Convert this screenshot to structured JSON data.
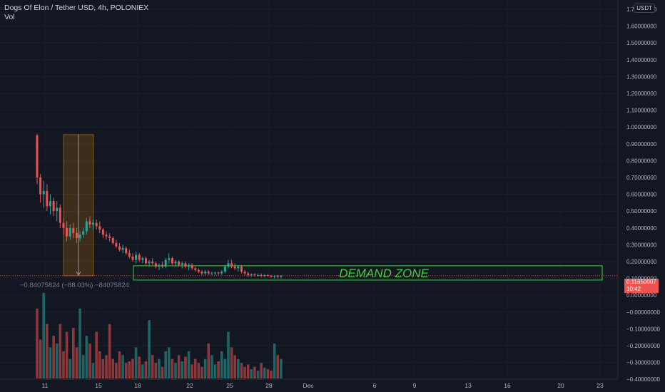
{
  "legend": {
    "title": "Dogs Of Elon / Tether USD, 4h, POLONIEX",
    "volume_label": "Vol"
  },
  "colors": {
    "background": "#131722",
    "up": "#26a69a",
    "down": "#ef5350",
    "zone": "#3bd33b",
    "text": "#d1d4dc"
  },
  "price_axis": {
    "unit": "USDT",
    "ticks": [
      "1.70000000",
      "1.60000000",
      "1.50000000",
      "1.40000000",
      "1.30000000",
      "1.20000000",
      "1.10000000",
      "1.00000000",
      "0.90000000",
      "0.80000000",
      "0.70000000",
      "0.60000000",
      "0.50000000",
      "0.40000000",
      "0.30000000",
      "0.20000000",
      "0.10000000",
      "0.00000000",
      "−0.00000000",
      "−0.10000000",
      "−0.20000000",
      "−0.30000000",
      "−0.40000000"
    ],
    "last_price": "0.11650007",
    "countdown": "10:42"
  },
  "time_axis": {
    "ticks": [
      "11",
      "15",
      "18",
      "22",
      "25",
      "28",
      "Dec",
      "6",
      "9",
      "13",
      "16",
      "20",
      "23"
    ]
  },
  "annotations": {
    "demand_zone_label": "DEMAND ZONE",
    "measure_label": "−0.84075824 (−88.03%) −84075824"
  },
  "chart_data": {
    "type": "candlestick",
    "interval": "4h",
    "ylim": [
      -0.45,
      1.75
    ],
    "demand_zone": [
      0.09,
      0.175
    ],
    "measurement": {
      "from_price": 0.955,
      "to_price": 0.115,
      "change": -0.84075824,
      "percent": -88.03
    },
    "candles": [
      [
        0.95,
        0.96,
        0.66,
        0.7
      ],
      [
        0.7,
        0.72,
        0.55,
        0.6
      ],
      [
        0.6,
        0.68,
        0.52,
        0.62
      ],
      [
        0.62,
        0.66,
        0.5,
        0.53
      ],
      [
        0.53,
        0.6,
        0.48,
        0.56
      ],
      [
        0.56,
        0.58,
        0.47,
        0.5
      ],
      [
        0.5,
        0.56,
        0.44,
        0.52
      ],
      [
        0.52,
        0.54,
        0.4,
        0.43
      ],
      [
        0.43,
        0.46,
        0.36,
        0.4
      ],
      [
        0.4,
        0.44,
        0.32,
        0.35
      ],
      [
        0.35,
        0.42,
        0.33,
        0.4
      ],
      [
        0.4,
        0.43,
        0.34,
        0.37
      ],
      [
        0.37,
        0.4,
        0.31,
        0.34
      ],
      [
        0.34,
        0.38,
        0.32,
        0.36
      ],
      [
        0.36,
        0.4,
        0.34,
        0.38
      ],
      [
        0.38,
        0.46,
        0.36,
        0.44
      ],
      [
        0.44,
        0.47,
        0.4,
        0.42
      ],
      [
        0.42,
        0.45,
        0.39,
        0.43
      ],
      [
        0.43,
        0.45,
        0.39,
        0.41
      ],
      [
        0.41,
        0.44,
        0.37,
        0.39
      ],
      [
        0.39,
        0.4,
        0.34,
        0.36
      ],
      [
        0.36,
        0.38,
        0.33,
        0.35
      ],
      [
        0.35,
        0.37,
        0.32,
        0.34
      ],
      [
        0.34,
        0.35,
        0.3,
        0.31
      ],
      [
        0.31,
        0.33,
        0.28,
        0.29
      ],
      [
        0.29,
        0.31,
        0.26,
        0.27
      ],
      [
        0.27,
        0.3,
        0.25,
        0.28
      ],
      [
        0.28,
        0.29,
        0.24,
        0.25
      ],
      [
        0.25,
        0.27,
        0.22,
        0.23
      ],
      [
        0.23,
        0.25,
        0.2,
        0.21
      ],
      [
        0.21,
        0.26,
        0.19,
        0.24
      ],
      [
        0.24,
        0.25,
        0.2,
        0.21
      ],
      [
        0.21,
        0.23,
        0.19,
        0.22
      ],
      [
        0.22,
        0.23,
        0.18,
        0.19
      ],
      [
        0.19,
        0.21,
        0.17,
        0.2
      ],
      [
        0.2,
        0.22,
        0.18,
        0.19
      ],
      [
        0.19,
        0.2,
        0.16,
        0.17
      ],
      [
        0.17,
        0.19,
        0.15,
        0.18
      ],
      [
        0.18,
        0.2,
        0.16,
        0.17
      ],
      [
        0.17,
        0.22,
        0.16,
        0.21
      ],
      [
        0.21,
        0.25,
        0.19,
        0.22
      ],
      [
        0.22,
        0.23,
        0.18,
        0.19
      ],
      [
        0.19,
        0.21,
        0.17,
        0.2
      ],
      [
        0.2,
        0.21,
        0.17,
        0.18
      ],
      [
        0.18,
        0.2,
        0.16,
        0.19
      ],
      [
        0.19,
        0.2,
        0.16,
        0.17
      ],
      [
        0.17,
        0.19,
        0.15,
        0.18
      ],
      [
        0.18,
        0.19,
        0.15,
        0.16
      ],
      [
        0.16,
        0.17,
        0.14,
        0.15
      ],
      [
        0.15,
        0.16,
        0.13,
        0.14
      ],
      [
        0.14,
        0.15,
        0.12,
        0.13
      ],
      [
        0.13,
        0.15,
        0.12,
        0.14
      ],
      [
        0.14,
        0.15,
        0.12,
        0.13
      ],
      [
        0.13,
        0.14,
        0.12,
        0.13
      ],
      [
        0.13,
        0.14,
        0.12,
        0.135
      ],
      [
        0.135,
        0.14,
        0.12,
        0.13
      ],
      [
        0.13,
        0.15,
        0.12,
        0.14
      ],
      [
        0.14,
        0.18,
        0.13,
        0.17
      ],
      [
        0.17,
        0.21,
        0.16,
        0.19
      ],
      [
        0.19,
        0.21,
        0.16,
        0.17
      ],
      [
        0.17,
        0.19,
        0.15,
        0.16
      ],
      [
        0.16,
        0.18,
        0.14,
        0.17
      ],
      [
        0.17,
        0.18,
        0.13,
        0.14
      ],
      [
        0.14,
        0.15,
        0.12,
        0.13
      ],
      [
        0.13,
        0.14,
        0.11,
        0.12
      ],
      [
        0.12,
        0.13,
        0.11,
        0.125
      ],
      [
        0.125,
        0.13,
        0.11,
        0.12
      ],
      [
        0.12,
        0.13,
        0.11,
        0.12
      ],
      [
        0.12,
        0.13,
        0.105,
        0.115
      ],
      [
        0.115,
        0.125,
        0.105,
        0.12
      ],
      [
        0.12,
        0.125,
        0.11,
        0.115
      ],
      [
        0.115,
        0.12,
        0.105,
        0.11
      ],
      [
        0.11,
        0.12,
        0.1,
        0.115
      ],
      [
        0.115,
        0.12,
        0.1,
        0.11
      ],
      [
        0.11,
        0.12,
        0.1,
        0.1165
      ]
    ],
    "volumes": [
      90,
      50,
      110,
      70,
      40,
      55,
      45,
      70,
      35,
      60,
      25,
      65,
      40,
      90,
      30,
      55,
      45,
      20,
      60,
      35,
      25,
      30,
      70,
      25,
      20,
      35,
      30,
      20,
      22,
      25,
      40,
      28,
      18,
      22,
      75,
      30,
      20,
      25,
      15,
      35,
      40,
      25,
      20,
      30,
      22,
      28,
      35,
      18,
      25,
      20,
      15,
      25,
      45,
      30,
      18,
      22,
      35,
      25,
      60,
      40,
      30,
      25,
      20,
      15,
      18,
      12,
      15,
      10,
      20,
      14,
      12,
      10,
      45,
      30,
      25
    ]
  }
}
